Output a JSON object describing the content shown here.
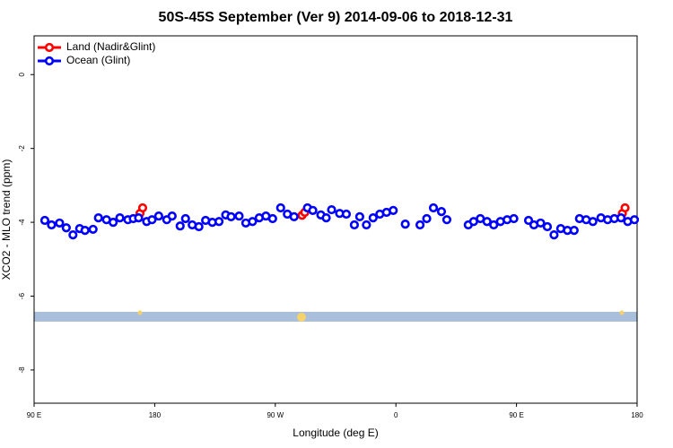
{
  "chart_data": {
    "type": "scatter",
    "title": "50S-45S September (Ver 9)   2014-09-06 to 2018-12-31",
    "xlabel": "Longitude (deg E)",
    "ylabel": "XCO2 - MLO trend (ppm)",
    "xlim": [
      90,
      540
    ],
    "ylim": [
      -8.9,
      1.05
    ],
    "xticks": [
      {
        "value": 90,
        "label": "90 E"
      },
      180,
      {
        "value": 270,
        "label": "90 W"
      },
      {
        "value": 360,
        "label": "0"
      },
      {
        "value": 450,
        "label": "90 E"
      },
      {
        "value": 540,
        "label": "180"
      }
    ],
    "yticks": [
      0,
      -2,
      -4,
      -6,
      -8
    ],
    "legend": "top-left",
    "series": [
      {
        "name": "Land (Nadir&Glint)",
        "color": "#ff0000",
        "x": [
          169,
          171,
          290,
          292,
          529,
          531
        ],
        "values": [
          -3.76,
          -3.61,
          -3.81,
          -3.73,
          -3.76,
          -3.61
        ]
      },
      {
        "name": "Ocean (Glint)",
        "color": "#0000ff",
        "x": [
          98,
          103,
          109,
          114,
          119,
          124,
          128,
          134,
          138,
          144,
          149,
          154,
          160,
          164,
          168,
          174,
          178,
          183,
          189,
          193,
          199,
          203,
          208,
          213,
          218,
          223,
          228,
          233,
          237,
          243,
          248,
          253,
          258,
          263,
          268,
          274,
          279,
          284,
          294,
          298,
          304,
          308,
          312,
          318,
          323,
          329,
          333,
          338,
          343,
          348,
          353,
          358,
          367,
          378,
          383,
          388,
          394,
          398,
          414,
          418,
          423,
          428,
          433,
          438,
          443,
          448,
          459,
          463,
          468,
          473,
          478,
          483,
          488,
          493,
          497,
          502,
          507,
          513,
          518,
          523,
          528,
          533,
          538
        ],
        "values": [
          -3.95,
          -4.07,
          -4.02,
          -4.15,
          -4.34,
          -4.17,
          -4.22,
          -4.19,
          -3.88,
          -3.93,
          -4.0,
          -3.88,
          -3.93,
          -3.9,
          -3.88,
          -3.98,
          -3.93,
          -3.83,
          -3.93,
          -3.83,
          -4.1,
          -3.9,
          -4.07,
          -4.12,
          -3.95,
          -4.0,
          -3.98,
          -3.8,
          -3.85,
          -3.83,
          -4.02,
          -3.98,
          -3.88,
          -3.83,
          -3.9,
          -3.61,
          -3.78,
          -3.85,
          -3.61,
          -3.68,
          -3.8,
          -3.88,
          -3.66,
          -3.76,
          -3.78,
          -4.07,
          -3.85,
          -4.07,
          -3.88,
          -3.78,
          -3.73,
          -3.68,
          -4.05,
          -4.07,
          -3.9,
          -3.61,
          -3.71,
          -3.93,
          -4.07,
          -3.98,
          -3.9,
          -3.98,
          -4.07,
          -3.98,
          -3.93,
          -3.9,
          -3.95,
          -4.07,
          -4.02,
          -4.12,
          -4.34,
          -4.17,
          -4.22,
          -4.22,
          -3.9,
          -3.93,
          -3.98,
          -3.88,
          -3.93,
          -3.9,
          -3.88,
          -3.98,
          -3.93
        ]
      }
    ]
  }
}
